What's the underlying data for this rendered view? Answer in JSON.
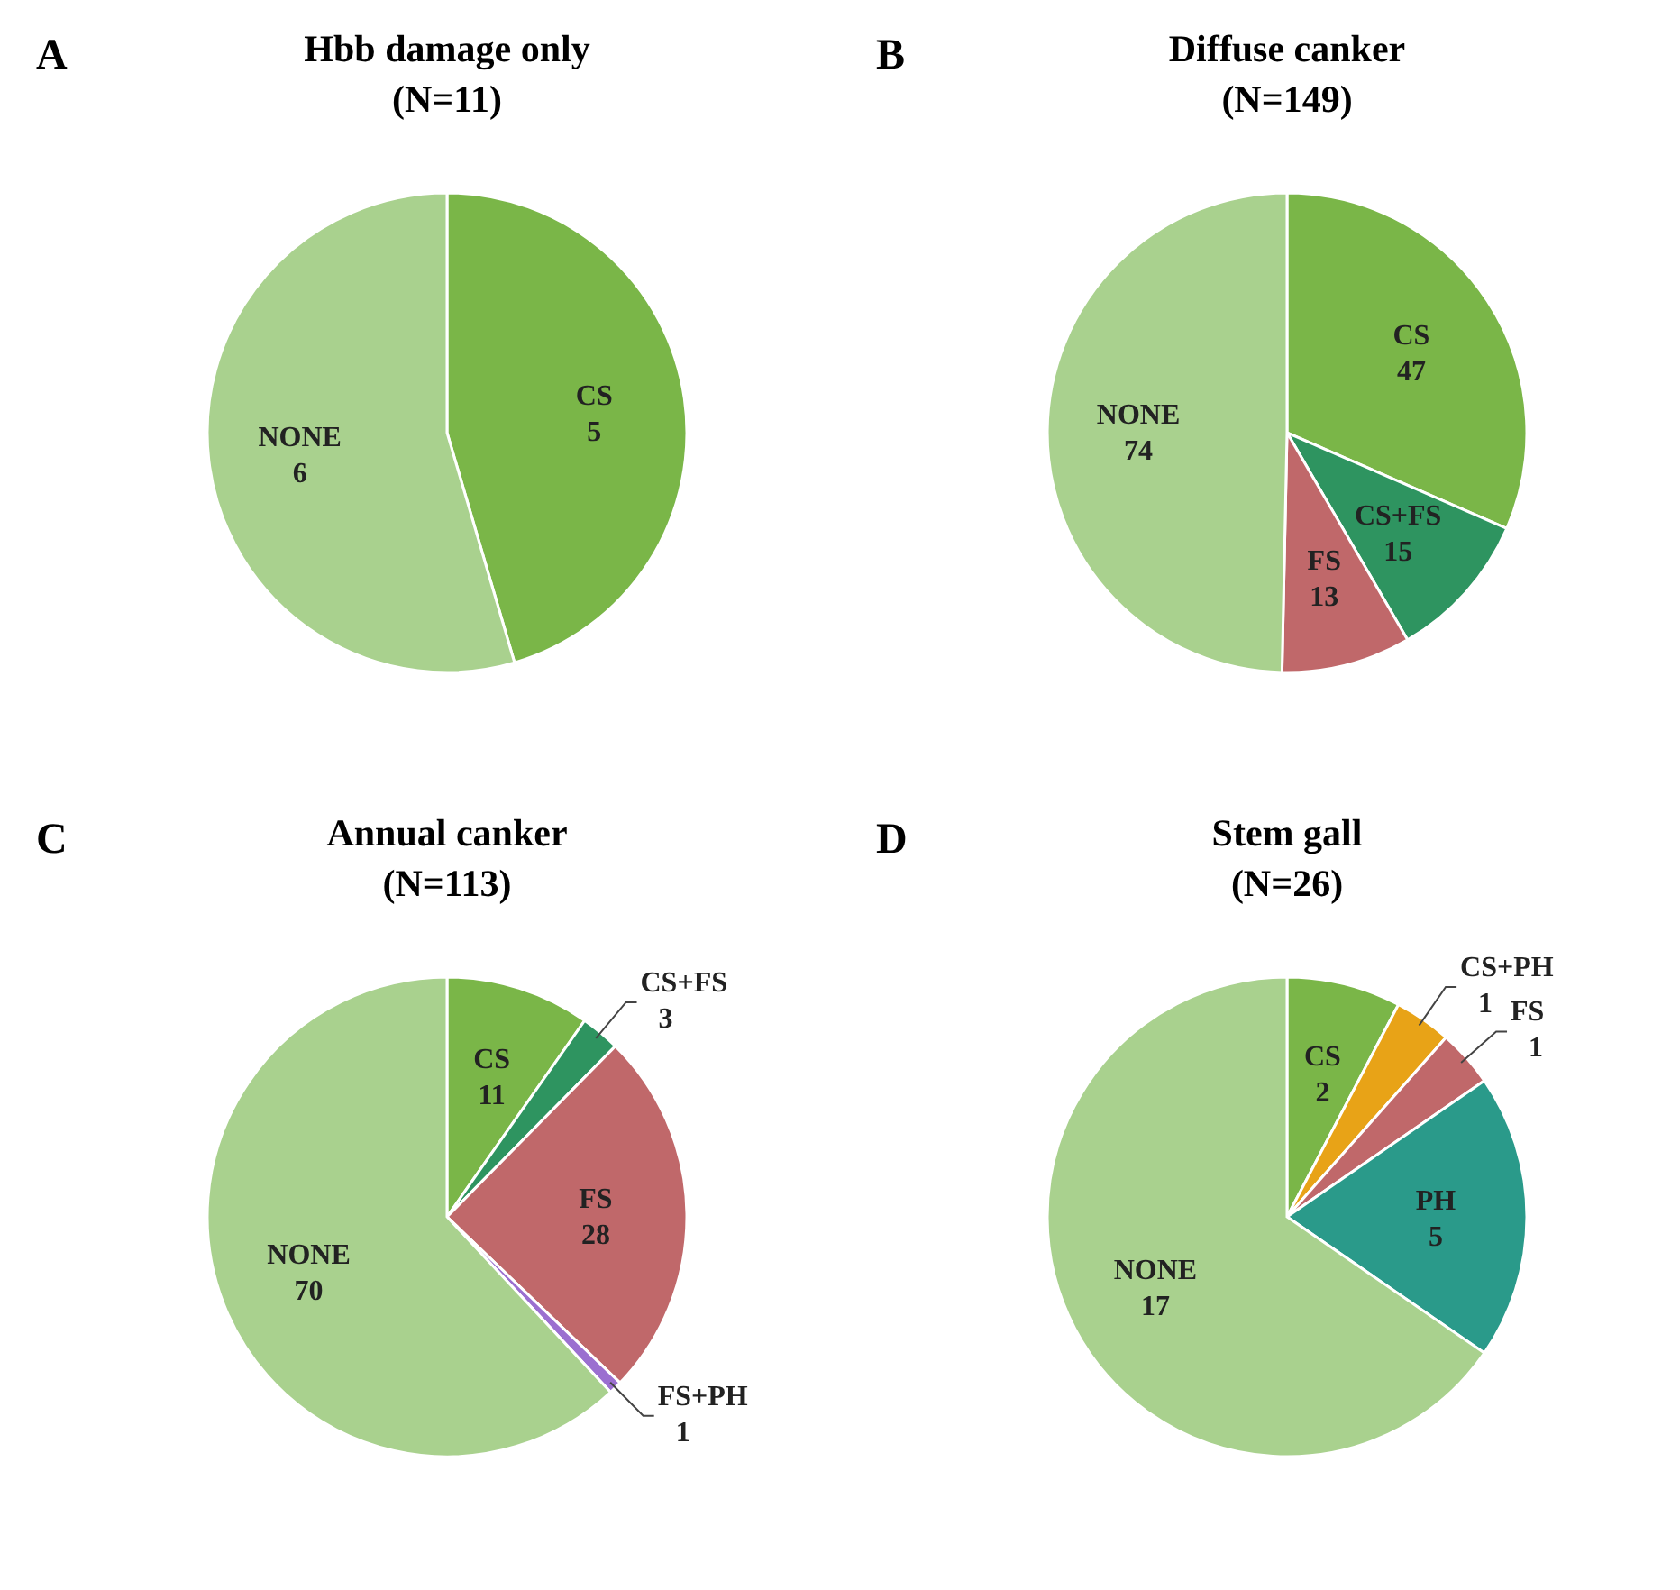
{
  "chart_data": [
    {
      "type": "pie",
      "title": "Hbb damage only",
      "subtitle": "(N=11)",
      "annotations": [
        "A"
      ],
      "categories": [
        "CS",
        "NONE"
      ],
      "values": [
        5,
        6
      ],
      "colors": [
        "#7ab648",
        "#a9d18e"
      ],
      "data_labels": true
    },
    {
      "type": "pie",
      "title": "Diffuse canker",
      "subtitle": "(N=149)",
      "annotations": [
        "B"
      ],
      "categories": [
        "CS",
        "CS+FS",
        "FS",
        "NONE"
      ],
      "values": [
        47,
        15,
        13,
        74
      ],
      "colors": [
        "#7ab648",
        "#2e9460",
        "#c0686a",
        "#a9d18e"
      ],
      "data_labels": true
    },
    {
      "type": "pie",
      "title": "Annual canker",
      "subtitle": "(N=113)",
      "annotations": [
        "C"
      ],
      "categories": [
        "CS",
        "CS+FS",
        "FS",
        "FS+PH",
        "NONE"
      ],
      "values": [
        11,
        3,
        28,
        1,
        70
      ],
      "colors": [
        "#7ab648",
        "#2e9460",
        "#c0686a",
        "#9b6fd0",
        "#a9d18e"
      ],
      "data_labels": true
    },
    {
      "type": "pie",
      "title": "Stem gall",
      "subtitle": "(N=26)",
      "annotations": [
        "D"
      ],
      "categories": [
        "CS",
        "CS+PH",
        "FS",
        "PH",
        "NONE"
      ],
      "values": [
        2,
        1,
        1,
        5,
        17
      ],
      "colors": [
        "#7ab648",
        "#e8a317",
        "#c0686a",
        "#2a9a8a",
        "#a9d18e"
      ],
      "data_labels": true
    }
  ]
}
